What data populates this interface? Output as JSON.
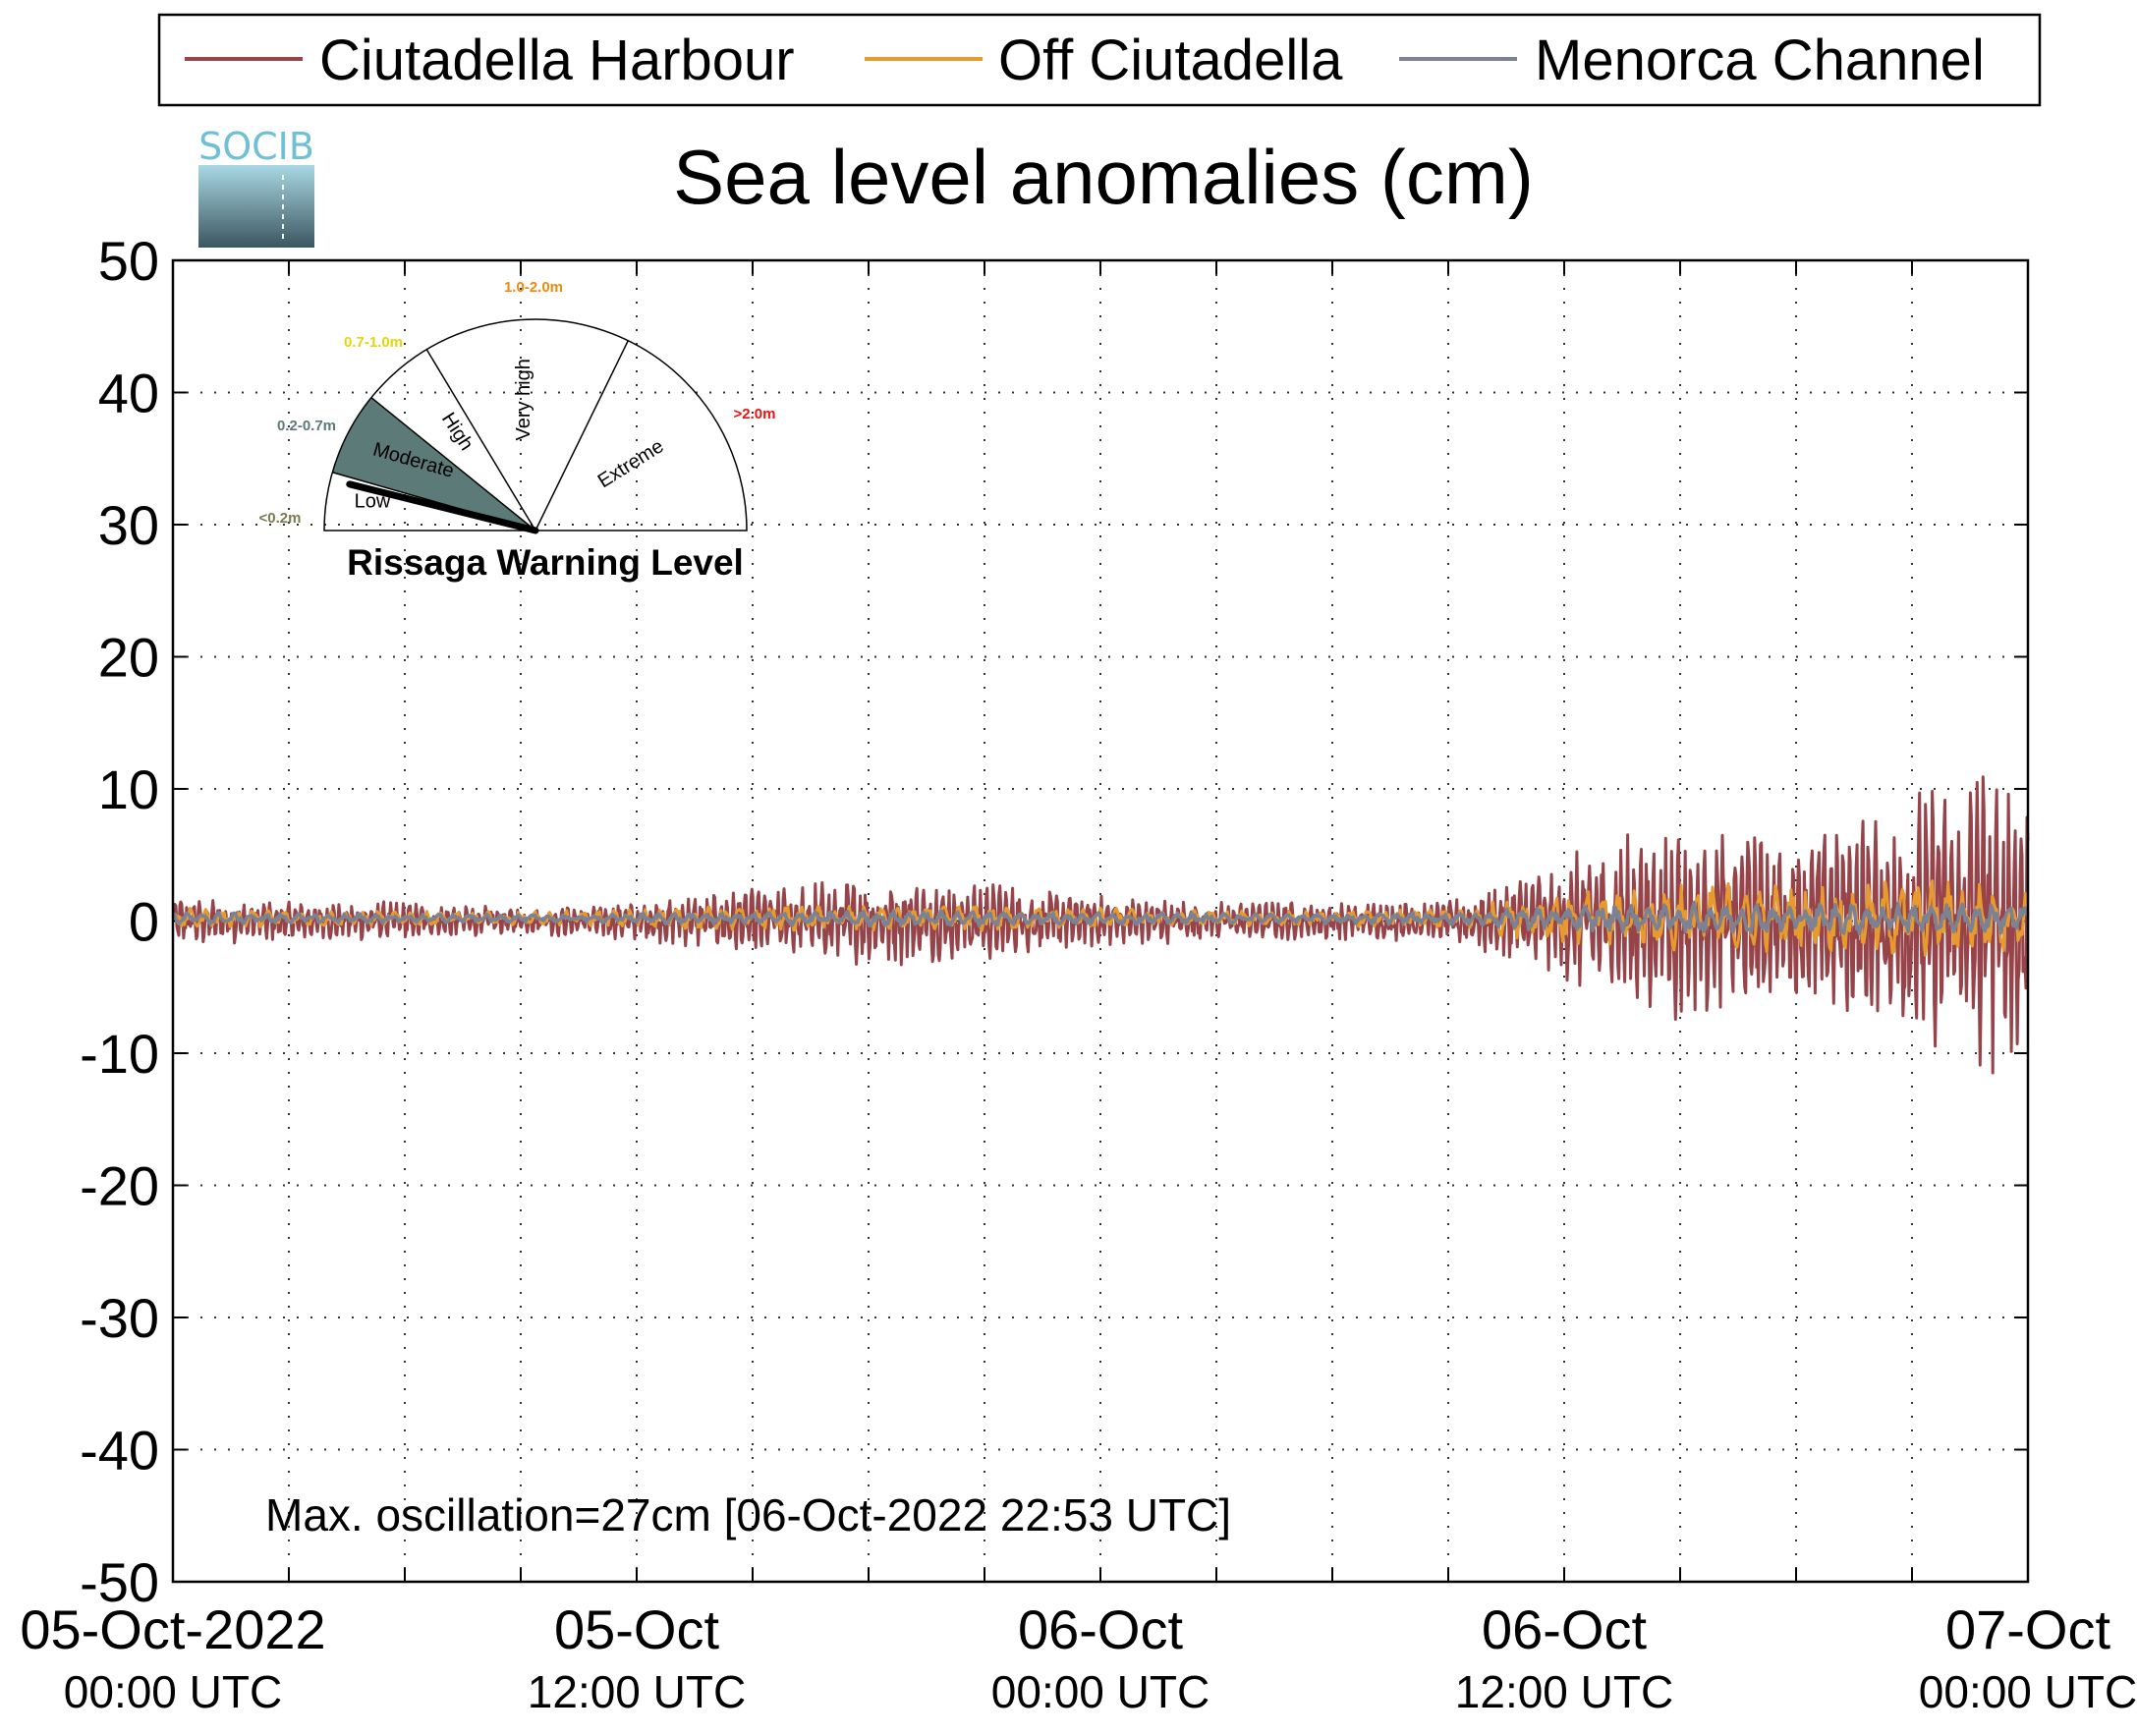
{
  "colors": {
    "harbour": "#97434a",
    "off": "#e79a2d",
    "channel": "#7a8294",
    "annotation": "#97434a",
    "gauge_fill": "#5c7a78",
    "logo_top": "#6fc0d6",
    "logo_bottom": "#3b5660",
    "low_label": "#7a7a50",
    "moderate_label": "#5c7a78",
    "high_label": "#e8d40a",
    "veryhigh_label": "#f08a0a",
    "extreme_label": "#ee1111"
  },
  "logo": {
    "text": "SOCIB",
    "icon": "socib-logo-icon"
  },
  "gauge": {
    "title": "Rissaga Warning Level",
    "current_level": "Moderate",
    "sectors": [
      {
        "label": "Low",
        "range": "<0.2m"
      },
      {
        "label": "Moderate",
        "range": "0.2-0.7m"
      },
      {
        "label": "High",
        "range": "0.7-1.0m"
      },
      {
        "label": "Very high",
        "range": "1.0-2.0m"
      },
      {
        "label": "Extreme",
        "range": ">2.0m"
      }
    ]
  },
  "annotation": "Max. oscillation=27cm [06-Oct-2022 22:53 UTC]",
  "chart_data": {
    "type": "line",
    "title": "Sea level anomalies (cm)",
    "xlabel": "",
    "ylabel": "",
    "ylim": [
      -50,
      50
    ],
    "yticks": [
      50,
      40,
      30,
      20,
      10,
      0,
      -10,
      -20,
      -30,
      -40,
      -50
    ],
    "xlim": [
      "05-Oct-2022 00:00 UTC",
      "07-Oct-2022 00:00 UTC"
    ],
    "xticks": [
      {
        "line1": "05-Oct-2022",
        "line2": "00:00 UTC"
      },
      {
        "line1": "05-Oct",
        "line2": "12:00 UTC"
      },
      {
        "line1": "06-Oct",
        "line2": "00:00 UTC"
      },
      {
        "line1": "06-Oct",
        "line2": "12:00 UTC"
      },
      {
        "line1": "07-Oct",
        "line2": "00:00 UTC"
      }
    ],
    "grid": true,
    "legend_position": "top",
    "x_hours": [
      0,
      3,
      6,
      9,
      12,
      15,
      18,
      21,
      24,
      27,
      30,
      33,
      36,
      39,
      42,
      45,
      48
    ],
    "series": [
      {
        "name": "Ciutadella Harbour",
        "envelope_cm": [
          2.0,
          1.5,
          1.5,
          1.0,
          1.5,
          2.5,
          3.5,
          3.0,
          2.0,
          1.5,
          1.5,
          1.5,
          5.0,
          8.0,
          6.0,
          10.0,
          13.5
        ]
      },
      {
        "name": "Off Ciutadella",
        "envelope_cm": [
          0.8,
          0.6,
          0.6,
          0.5,
          0.7,
          1.0,
          1.0,
          1.0,
          0.8,
          0.6,
          0.6,
          0.8,
          2.0,
          3.0,
          2.5,
          3.0,
          2.5
        ]
      },
      {
        "name": "Menorca Channel",
        "envelope_cm": [
          0.5,
          0.4,
          0.4,
          0.3,
          0.4,
          0.5,
          0.6,
          0.6,
          0.5,
          0.4,
          0.4,
          0.5,
          1.0,
          1.2,
          1.2,
          1.2,
          1.2
        ]
      }
    ]
  }
}
